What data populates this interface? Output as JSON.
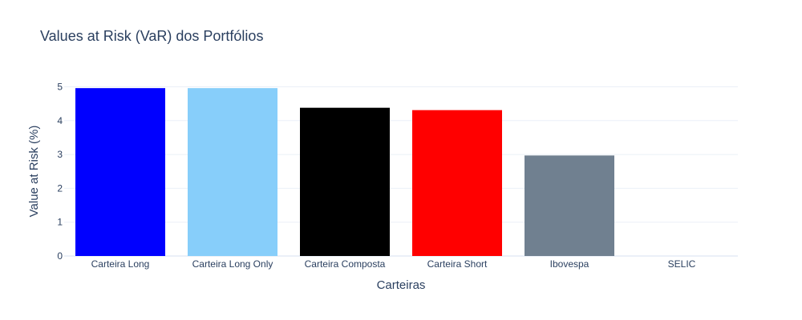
{
  "chart_data": {
    "type": "bar",
    "title": "Values at Risk (VaR) dos Portfólios",
    "xlabel": "Carteiras",
    "ylabel": "Value at Risk (%)",
    "categories": [
      "Carteira Long",
      "Carteira Long Only",
      "Carteira Composta",
      "Carteira Short",
      "Ibovespa",
      "SELIC"
    ],
    "values": [
      4.96,
      4.96,
      4.38,
      4.31,
      2.97,
      0.0
    ],
    "colors": [
      "#0000ff",
      "#87cefa",
      "#000000",
      "#ff0000",
      "#708090",
      "#d3d3d3"
    ],
    "ylim": [
      0,
      5.2
    ],
    "yticks": [
      0,
      1,
      2,
      3,
      4,
      5
    ],
    "grid": true,
    "background": "#ffffff",
    "grid_color": "#ebf0f8",
    "text_color": "#2a3f5f"
  }
}
